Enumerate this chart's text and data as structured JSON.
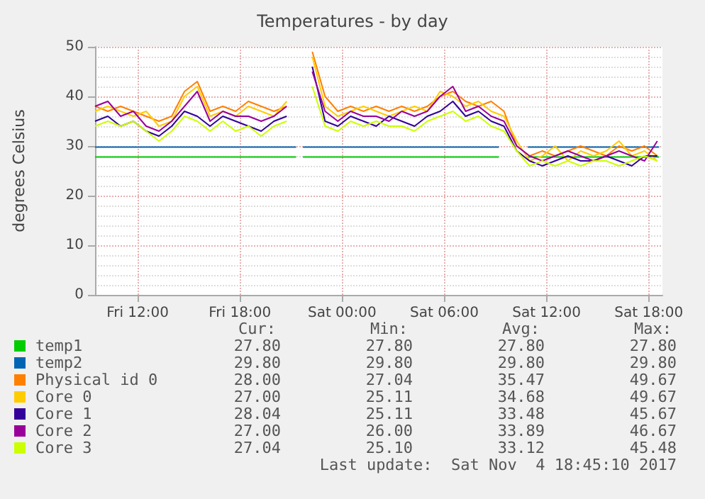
{
  "chart_data": {
    "type": "line",
    "title": "Temperatures - by day",
    "ylabel": "degrees Celsius",
    "x": [
      "2017-11-03T09:30",
      "2017-11-03T10:15",
      "2017-11-03T11:00",
      "2017-11-03T11:45",
      "2017-11-03T12:30",
      "2017-11-03T13:15",
      "2017-11-03T14:00",
      "2017-11-03T14:45",
      "2017-11-03T15:30",
      "2017-11-03T16:15",
      "2017-11-03T17:00",
      "2017-11-03T17:45",
      "2017-11-03T18:30",
      "2017-11-03T19:15",
      "2017-11-03T20:00",
      "2017-11-03T20:45",
      "2017-11-03T21:30",
      "2017-11-03T22:15",
      "2017-11-03T23:00",
      "2017-11-03T23:45",
      "2017-11-04T00:30",
      "2017-11-04T01:15",
      "2017-11-04T02:00",
      "2017-11-04T02:45",
      "2017-11-04T03:30",
      "2017-11-04T04:15",
      "2017-11-04T05:00",
      "2017-11-04T05:45",
      "2017-11-04T06:30",
      "2017-11-04T07:15",
      "2017-11-04T08:00",
      "2017-11-04T08:45",
      "2017-11-04T09:30",
      "2017-11-04T10:15",
      "2017-11-04T11:00",
      "2017-11-04T11:45",
      "2017-11-04T12:30",
      "2017-11-04T13:15",
      "2017-11-04T14:00",
      "2017-11-04T14:45",
      "2017-11-04T15:30",
      "2017-11-04T16:15",
      "2017-11-04T17:00",
      "2017-11-04T17:45",
      "2017-11-04T18:30"
    ],
    "xlim": [
      "2017-11-03T09:30",
      "2017-11-04T18:48"
    ],
    "xticks": [
      {
        "value": "2017-11-03T12:00",
        "label": "Fri 12:00"
      },
      {
        "value": "2017-11-03T18:00",
        "label": "Fri 18:00"
      },
      {
        "value": "2017-11-04T00:00",
        "label": "Sat 00:00"
      },
      {
        "value": "2017-11-04T06:00",
        "label": "Sat 06:00"
      },
      {
        "value": "2017-11-04T12:00",
        "label": "Sat 12:00"
      },
      {
        "value": "2017-11-04T18:00",
        "label": "Sat 18:00"
      }
    ],
    "ylim": [
      0,
      50
    ],
    "yticks": [
      0,
      10,
      20,
      30,
      40,
      50
    ],
    "grid": true,
    "legend": "bottom",
    "series": [
      {
        "name": "temp1",
        "color": "#00cc00",
        "x": [
          "2017-11-03T09:30",
          "2017-11-03T21:18",
          "2017-11-03T21:30",
          "2017-11-03T21:42",
          "2017-11-04T09:12",
          "2017-11-04T09:30",
          "2017-11-04T10:54",
          "2017-11-04T18:36"
        ],
        "values": [
          27.8,
          27.8,
          null,
          27.8,
          27.8,
          null,
          27.8,
          27.8
        ]
      },
      {
        "name": "temp2",
        "color": "#0066b3",
        "x": [
          "2017-11-03T09:30",
          "2017-11-03T21:18",
          "2017-11-03T21:30",
          "2017-11-03T21:42",
          "2017-11-04T09:12",
          "2017-11-04T09:30",
          "2017-11-04T10:54",
          "2017-11-04T18:36"
        ],
        "values": [
          29.8,
          29.8,
          null,
          29.8,
          29.8,
          null,
          29.8,
          29.8
        ]
      },
      {
        "name": "Physical id 0",
        "color": "#ff8000",
        "values": [
          38,
          37,
          38,
          37,
          36,
          35,
          36,
          41,
          43,
          37,
          38,
          37,
          39,
          38,
          37,
          38,
          null,
          49,
          40,
          37,
          38,
          37,
          38,
          37,
          38,
          37,
          38,
          40,
          41,
          39,
          38,
          39,
          37,
          30,
          28,
          29,
          28,
          29,
          30,
          29,
          28,
          30,
          29,
          30,
          28
        ]
      },
      {
        "name": "Core 0",
        "color": "#ffcc00",
        "values": [
          37,
          38,
          37,
          36,
          37,
          34,
          35,
          40,
          42,
          36,
          37,
          36,
          38,
          37,
          36,
          39,
          null,
          48,
          38,
          36,
          37,
          38,
          37,
          36,
          37,
          38,
          37,
          41,
          40,
          38,
          39,
          37,
          36,
          31,
          27,
          28,
          30,
          27,
          29,
          28,
          29,
          31,
          28,
          29,
          27
        ]
      },
      {
        "name": "Core 1",
        "color": "#330099",
        "values": [
          35,
          36,
          34,
          35,
          33,
          32,
          34,
          37,
          36,
          34,
          36,
          35,
          34,
          33,
          35,
          36,
          null,
          46,
          35,
          34,
          36,
          35,
          34,
          36,
          35,
          34,
          36,
          37,
          39,
          36,
          37,
          35,
          34,
          29,
          27,
          26,
          27,
          28,
          27,
          27,
          28,
          27,
          26,
          28,
          28
        ]
      },
      {
        "name": "Core 2",
        "color": "#990099",
        "values": [
          38,
          39,
          36,
          37,
          34,
          33,
          35,
          38,
          41,
          35,
          37,
          36,
          36,
          35,
          36,
          38,
          null,
          45,
          37,
          35,
          37,
          36,
          36,
          35,
          37,
          36,
          37,
          40,
          42,
          37,
          38,
          36,
          35,
          30,
          28,
          27,
          28,
          29,
          28,
          27,
          28,
          29,
          28,
          27,
          31
        ]
      },
      {
        "name": "Core 3",
        "color": "#ccff00",
        "values": [
          34,
          35,
          34,
          35,
          33,
          31,
          33,
          36,
          35,
          33,
          35,
          33,
          34,
          32,
          34,
          35,
          null,
          42,
          34,
          33,
          35,
          34,
          35,
          34,
          34,
          33,
          35,
          36,
          37,
          35,
          36,
          34,
          33,
          29,
          26,
          27,
          26,
          27,
          26,
          27,
          27,
          26,
          27,
          28,
          27
        ]
      }
    ],
    "annotations": [
      "Cur:",
      "Min:",
      "Avg:",
      "Max:",
      "27.80",
      "27.80",
      "27.80",
      "27.80",
      "29.80",
      "29.80",
      "29.80",
      "29.80",
      "28.00",
      "27.04",
      "35.47",
      "49.67",
      "27.00",
      "25.11",
      "34.68",
      "49.67",
      "28.04",
      "25.11",
      "33.48",
      "45.67",
      "27.00",
      "26.00",
      "33.89",
      "46.67",
      "27.04",
      "25.10",
      "33.12",
      "45.48",
      "Last update:  Sat Nov  4 18:45:10 2017"
    ]
  }
}
